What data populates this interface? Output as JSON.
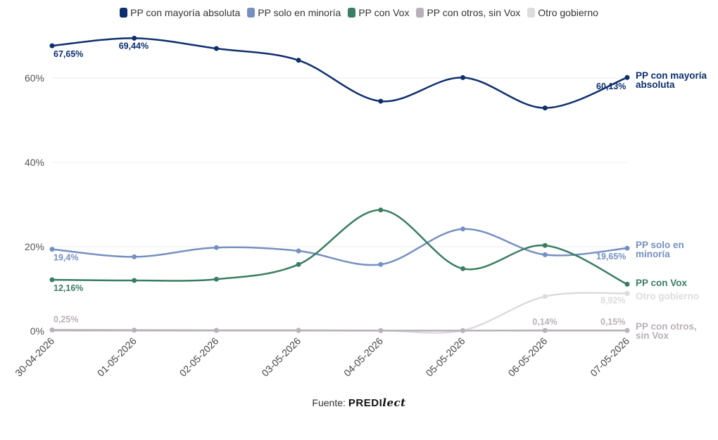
{
  "source": {
    "label": "Fuente:",
    "brand_main": "PREDI",
    "brand_script": "lect"
  },
  "chart_data": {
    "type": "line",
    "categories": [
      "30-04-2026",
      "01-05-2026",
      "02-05-2026",
      "03-05-2026",
      "04-05-2026",
      "05-05-2026",
      "06-05-2026",
      "07-05-2026"
    ],
    "ylim": [
      0,
      70
    ],
    "yticks": [
      0,
      20,
      40,
      60
    ],
    "ytick_labels": [
      "0%",
      "20%",
      "40%",
      "60%"
    ],
    "grid": true,
    "legend_position": "top-center",
    "series": [
      {
        "name": "PP con mayoría absoluta",
        "end_label": [
          "PP con mayoría",
          "absoluta"
        ],
        "color": "#0d2f6e",
        "values": [
          67.65,
          69.44,
          67.0,
          64.2,
          54.5,
          60.1,
          52.9,
          60.13
        ],
        "data_labels": [
          {
            "i": 0,
            "text": "67,65%"
          },
          {
            "i": 1,
            "text": "69,44%"
          },
          {
            "i": 7,
            "text": "60,13%"
          }
        ]
      },
      {
        "name": "PP solo en minoría",
        "end_label": [
          "PP solo en",
          "minoría"
        ],
        "color": "#7590c0",
        "values": [
          19.4,
          17.6,
          19.8,
          19.0,
          15.8,
          24.2,
          18.1,
          19.65
        ],
        "data_labels": [
          {
            "i": 0,
            "text": "19,4%"
          },
          {
            "i": 7,
            "text": "19,65%"
          }
        ]
      },
      {
        "name": "PP con Vox",
        "end_label": [
          "PP con Vox"
        ],
        "color": "#3a7d62",
        "values": [
          12.16,
          12.0,
          12.3,
          15.8,
          28.7,
          14.8,
          20.3,
          11.1
        ],
        "data_labels": [
          {
            "i": 0,
            "text": "12,16%"
          }
        ]
      },
      {
        "name": "PP con otros, sin Vox",
        "end_label": [
          "PP con otros,",
          "sin Vox"
        ],
        "color": "#b9b0b8",
        "values": [
          0.25,
          0.2,
          0.15,
          0.15,
          0.1,
          0.1,
          0.14,
          0.15
        ],
        "data_labels": [
          {
            "i": 0,
            "text": "0,25%"
          },
          {
            "i": 6,
            "text": "0,14%"
          },
          {
            "i": 7,
            "text": "0,15%"
          }
        ]
      },
      {
        "name": "Otro gobierno",
        "end_label": [
          "Otro gobierno"
        ],
        "color": "#dcdcdf",
        "values": [
          0.3,
          0.25,
          0.2,
          0.2,
          0.15,
          0.15,
          8.2,
          8.92
        ],
        "data_labels": [
          {
            "i": 7,
            "text": "8,92%"
          }
        ]
      }
    ]
  }
}
